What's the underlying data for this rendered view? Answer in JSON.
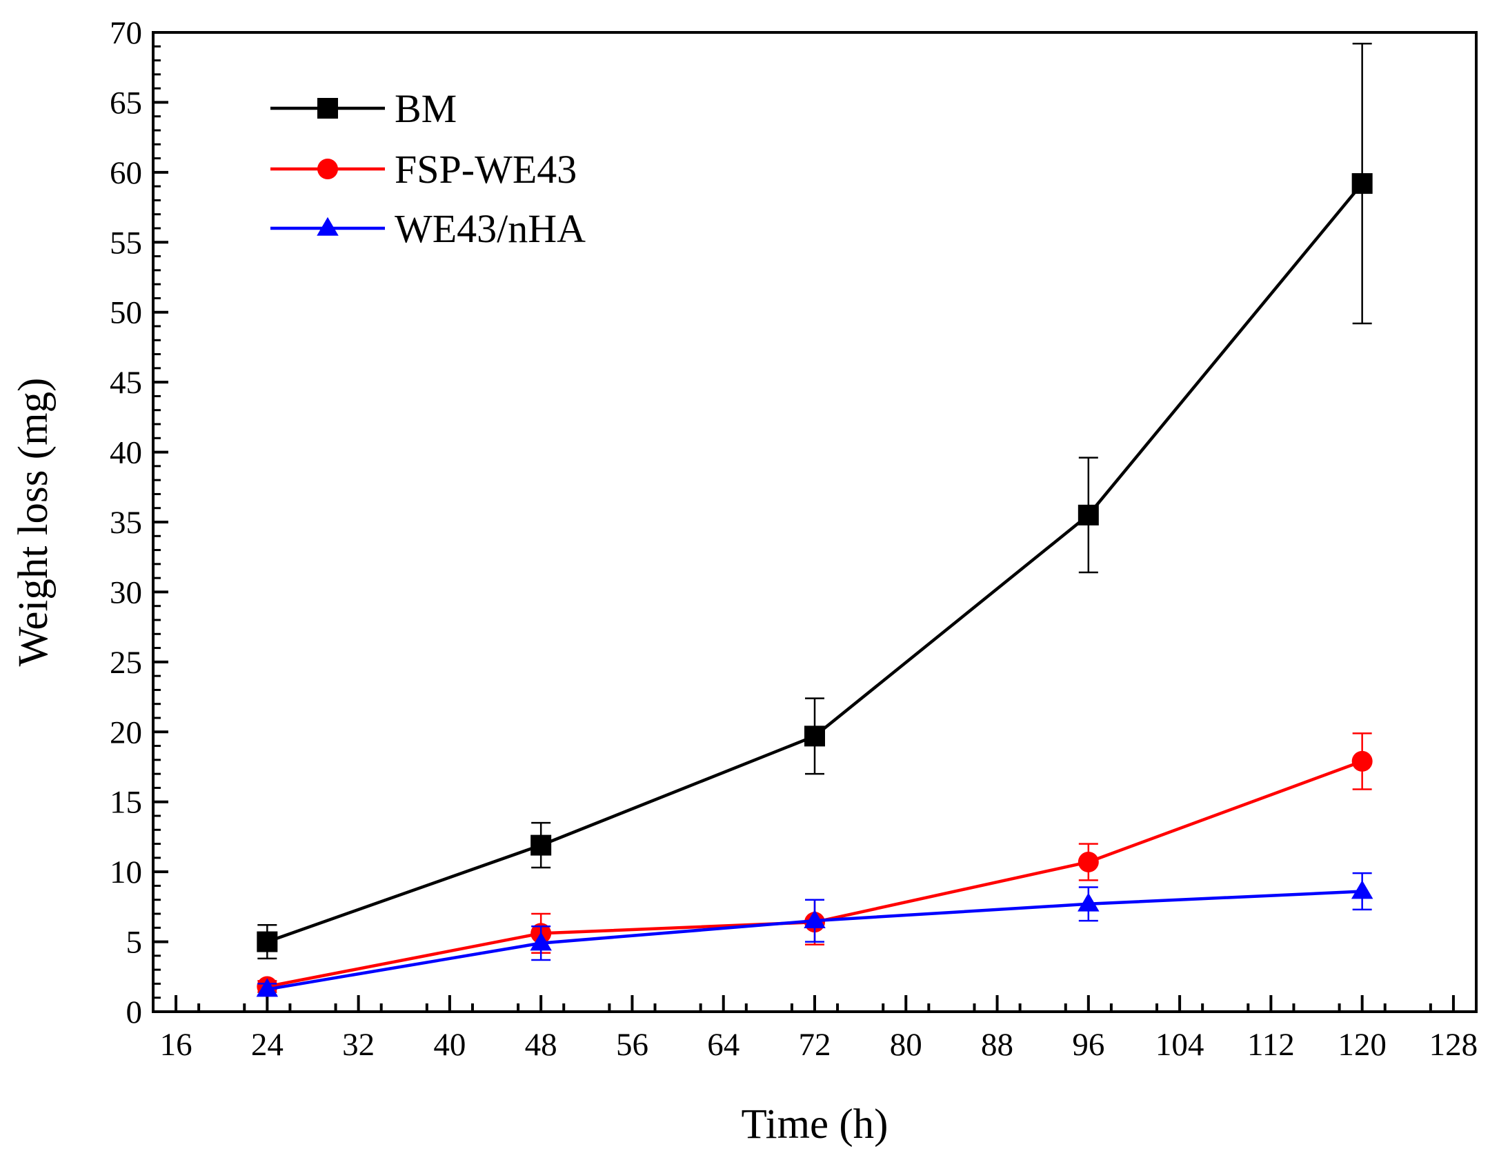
{
  "chart_data": {
    "type": "line",
    "xlabel": "Time (h)",
    "ylabel": "Weight loss (mg)",
    "xlim": [
      14,
      130
    ],
    "ylim": [
      0,
      70
    ],
    "xticks": [
      16,
      24,
      32,
      40,
      48,
      56,
      64,
      72,
      80,
      88,
      96,
      104,
      112,
      120,
      128
    ],
    "yticks": [
      0,
      5,
      10,
      15,
      20,
      25,
      30,
      35,
      40,
      45,
      50,
      55,
      60,
      65,
      70
    ],
    "x_minor_step": 4,
    "y_minor_step": 1,
    "grid": false,
    "legend_position": "top-left",
    "x": [
      24,
      48,
      72,
      96,
      120
    ],
    "series": [
      {
        "name": "BM",
        "color": "#000000",
        "marker": "square",
        "values": [
          5.0,
          11.9,
          19.7,
          35.5,
          59.2
        ],
        "errors": [
          1.2,
          1.6,
          2.7,
          4.1,
          10.0
        ]
      },
      {
        "name": "FSP-WE43",
        "color": "#ff0000",
        "marker": "circle",
        "values": [
          1.8,
          5.6,
          6.4,
          10.7,
          17.9
        ],
        "errors": [
          0.4,
          1.4,
          1.6,
          1.3,
          2.0
        ]
      },
      {
        "name": "WE43/nHA",
        "color": "#0000ff",
        "marker": "triangle",
        "values": [
          1.6,
          4.9,
          6.5,
          7.7,
          8.6
        ],
        "errors": [
          0.4,
          1.2,
          1.5,
          1.2,
          1.3
        ]
      }
    ]
  }
}
